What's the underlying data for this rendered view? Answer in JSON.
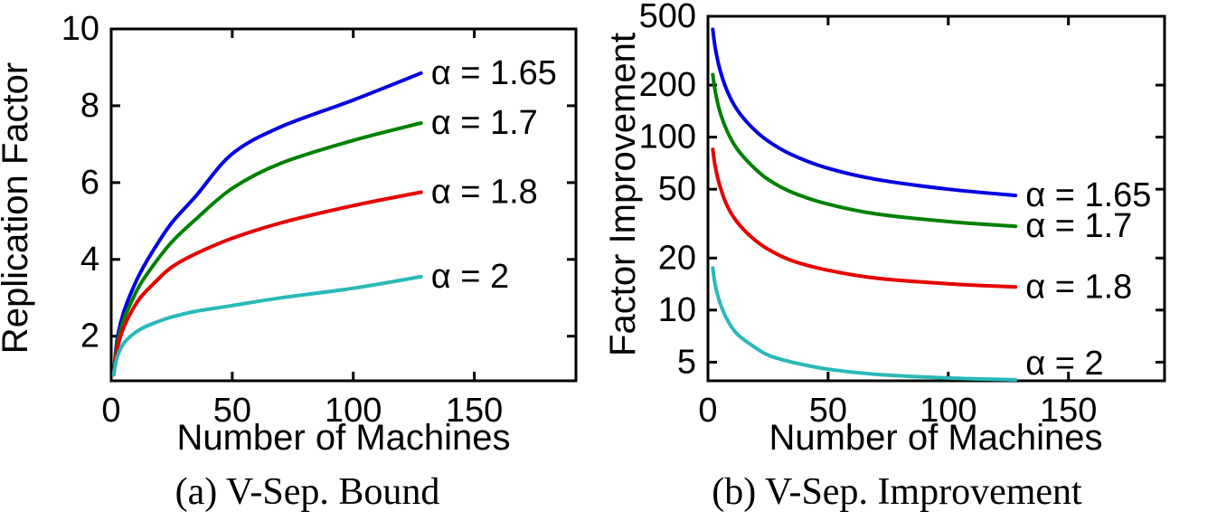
{
  "chart_data": [
    {
      "type": "line",
      "caption": "(a) V-Sep. Bound",
      "xlabel": "Number of Machines",
      "ylabel": "Replication Factor",
      "xlim": [
        0,
        192
      ],
      "ylim": [
        0.84,
        10
      ],
      "yscale": "linear",
      "grid": false,
      "xticks": [
        0,
        50,
        100,
        150
      ],
      "xtick_labels": [
        "0",
        "50",
        "100",
        "150"
      ],
      "yticks": [
        2,
        4,
        6,
        8,
        10
      ],
      "ytick_labels": [
        "2",
        "4",
        "6",
        "8",
        "10"
      ],
      "legend_position": "labels-at-curve-ends",
      "x": [
        1,
        2,
        3,
        5,
        8,
        12,
        18,
        25,
        35,
        50,
        70,
        100,
        128
      ],
      "series": [
        {
          "name": "alpha-1.65",
          "label": "α = 1.65",
          "color": "#0000e0",
          "values": [
            1,
            1.7,
            2.1,
            2.6,
            3.1,
            3.65,
            4.3,
            4.95,
            5.65,
            6.75,
            7.45,
            8.15,
            8.85
          ]
        },
        {
          "name": "alpha-1.7",
          "label": "α = 1.7",
          "color": "#008000",
          "values": [
            1,
            1.6,
            1.95,
            2.4,
            2.85,
            3.35,
            3.9,
            4.45,
            5.05,
            5.85,
            6.5,
            7.1,
            7.55
          ]
        },
        {
          "name": "alpha-1.8",
          "label": "α = 1.8",
          "color": "#e60000",
          "values": [
            1,
            1.5,
            1.8,
            2.2,
            2.6,
            3.0,
            3.4,
            3.8,
            4.15,
            4.55,
            4.95,
            5.4,
            5.75
          ]
        },
        {
          "name": "alpha-2",
          "label": "α = 2",
          "color": "#2ab8b8",
          "values": [
            1,
            1.35,
            1.55,
            1.8,
            2.0,
            2.18,
            2.35,
            2.5,
            2.65,
            2.8,
            3.0,
            3.25,
            3.55
          ]
        }
      ]
    },
    {
      "type": "line",
      "caption": "(b) V-Sep. Improvement",
      "xlabel": "Number of Machines",
      "ylabel": "Factor Improvement",
      "xlim": [
        0,
        190
      ],
      "ylim": [
        3.9,
        500
      ],
      "yscale": "log",
      "grid": false,
      "xticks": [
        0,
        50,
        100,
        150
      ],
      "xtick_labels": [
        "0",
        "50",
        "100",
        "150"
      ],
      "yticks": [
        5,
        10,
        20,
        50,
        100,
        200,
        500
      ],
      "ytick_labels": [
        "5",
        "10",
        "20",
        "50",
        "100",
        "200",
        "500"
      ],
      "legend_position": "labels-at-curve-ends",
      "x": [
        2,
        3,
        5,
        8,
        12,
        18,
        25,
        35,
        50,
        70,
        100,
        128
      ],
      "series": [
        {
          "name": "alpha-1.65",
          "label": "α = 1.65",
          "color": "#0000e0",
          "values": [
            420,
            330,
            245,
            185,
            145,
            115,
            95,
            79,
            66,
            57,
            50,
            46
          ]
        },
        {
          "name": "alpha-1.7",
          "label": "α = 1.7",
          "color": "#008000",
          "values": [
            230,
            185,
            140,
            108,
            86,
            69,
            57,
            48,
            41,
            36,
            32.5,
            30.5
          ]
        },
        {
          "name": "alpha-1.8",
          "label": "α = 1.8",
          "color": "#e60000",
          "values": [
            85,
            68,
            52,
            40,
            32.5,
            26.5,
            22.5,
            19.3,
            17,
            15.3,
            14.2,
            13.6
          ]
        },
        {
          "name": "alpha-2",
          "label": "α = 2",
          "color": "#2ab8b8",
          "label_y": 4.9,
          "values": [
            17.5,
            14,
            11,
            8.8,
            7.3,
            6.3,
            5.5,
            5.0,
            4.55,
            4.25,
            4.05,
            3.95
          ]
        }
      ]
    }
  ]
}
